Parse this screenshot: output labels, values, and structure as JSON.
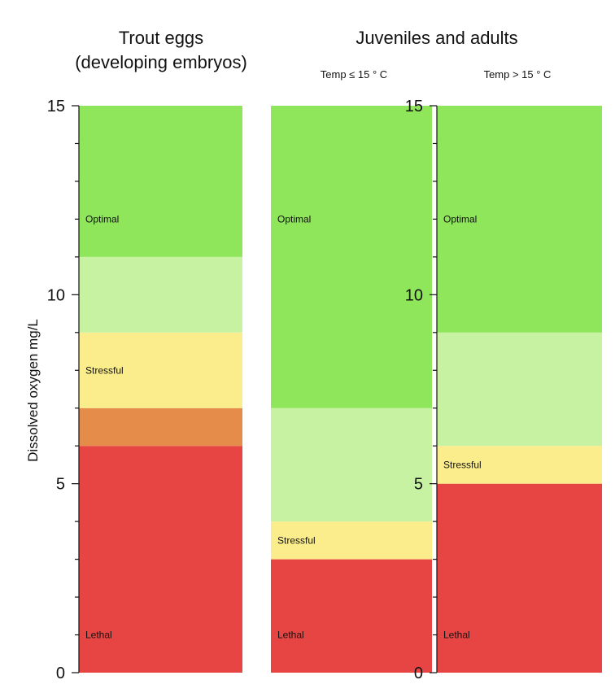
{
  "chart_data": {
    "type": "bar",
    "ylabel": "Dissolved oxygen  mg/L",
    "ylim": [
      0,
      15
    ],
    "yticks": [
      0,
      5,
      10,
      15
    ],
    "groups": [
      {
        "title": "Trout eggs",
        "title2": "(developing embryos)",
        "subtitle": "",
        "columns": [
          {
            "label": "",
            "bands": [
              {
                "from": 0,
                "to": 6,
                "color": "#e64543"
              },
              {
                "from": 6,
                "to": 7,
                "color": "#e68c4a"
              },
              {
                "from": 7,
                "to": 9,
                "color": "#fced8c"
              },
              {
                "from": 9,
                "to": 11,
                "color": "#c6f2a2"
              },
              {
                "from": 11,
                "to": 15,
                "color": "#8fe65a"
              }
            ],
            "zone_labels": [
              {
                "text": "Lethal",
                "y": 1
              },
              {
                "text": "Stressful",
                "y": 8
              },
              {
                "text": "Optimal",
                "y": 12
              }
            ]
          }
        ]
      },
      {
        "title": "Juveniles and adults",
        "title2": "",
        "subtitle": "",
        "columns": [
          {
            "label": "Temp ≤ 15 ° C",
            "bands": [
              {
                "from": 0,
                "to": 3,
                "color": "#e64543"
              },
              {
                "from": 3,
                "to": 4,
                "color": "#fced8c"
              },
              {
                "from": 4,
                "to": 7,
                "color": "#c6f2a2"
              },
              {
                "from": 7,
                "to": 15,
                "color": "#8fe65a"
              }
            ],
            "zone_labels": [
              {
                "text": "Lethal",
                "y": 1
              },
              {
                "text": "Stressful",
                "y": 3.5
              },
              {
                "text": "Optimal",
                "y": 12
              }
            ]
          },
          {
            "label": "Temp > 15 ° C",
            "bands": [
              {
                "from": 0,
                "to": 5,
                "color": "#e64543"
              },
              {
                "from": 5,
                "to": 6,
                "color": "#fced8c"
              },
              {
                "from": 6,
                "to": 9,
                "color": "#c6f2a2"
              },
              {
                "from": 9,
                "to": 15,
                "color": "#8fe65a"
              }
            ],
            "zone_labels": [
              {
                "text": "Lethal",
                "y": 1
              },
              {
                "text": "Stressful",
                "y": 5.5
              },
              {
                "text": "Optimal",
                "y": 12
              }
            ]
          }
        ]
      }
    ]
  }
}
